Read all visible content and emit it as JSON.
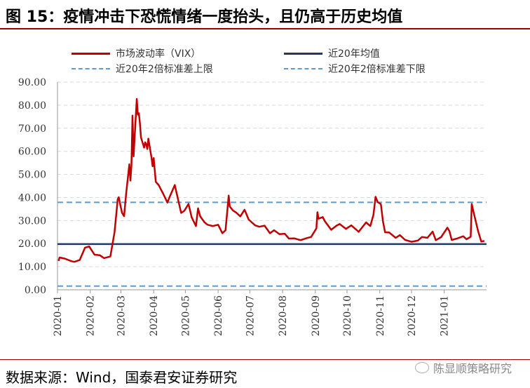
{
  "title": "图 15：疫情冲击下恐慌情绪一度抬头，且仍高于历史均值",
  "source": "数据来源：Wind，国泰君安证券研究",
  "watermark": "陈显顺策略研究",
  "colors": {
    "vix": "#c00000",
    "mean": "#1f3864",
    "band": "#5b9bd5",
    "grid": "#d9d9d9",
    "title_rule": "#9a0000"
  },
  "chart_data": {
    "type": "line",
    "title": "",
    "xlabel": "",
    "ylabel": "",
    "ylim": [
      0,
      90
    ],
    "yticks": [
      "0.00",
      "10.00",
      "20.00",
      "30.00",
      "40.00",
      "50.00",
      "60.00",
      "70.00",
      "80.00",
      "90.00"
    ],
    "xticks": [
      "2020-01",
      "2020-02",
      "2020-03",
      "2020-04",
      "2020-05",
      "2020-06",
      "2020-07",
      "2020-08",
      "2020-09",
      "2020-10",
      "2020-11",
      "2020-12",
      "2021-01"
    ],
    "grid": true,
    "legend": [
      {
        "name": "市场波动率（VIX）",
        "style": "solid",
        "color": "#c00000"
      },
      {
        "name": "近20年均值",
        "style": "solid",
        "color": "#1f3864"
      },
      {
        "name": "近20年2倍标准差上限",
        "style": "dashed",
        "color": "#5b9bd5"
      },
      {
        "name": "近20年2倍标准差下限",
        "style": "dashed",
        "color": "#5b9bd5"
      }
    ],
    "series": [
      {
        "name": "市场波动率（VIX）",
        "x": [
          "2020-01-02",
          "2020-01-03",
          "2020-01-08",
          "2020-01-14",
          "2020-01-17",
          "2020-01-22",
          "2020-01-27",
          "2020-01-31",
          "2020-02-05",
          "2020-02-10",
          "2020-02-14",
          "2020-02-20",
          "2020-02-24",
          "2020-02-27",
          "2020-02-28",
          "2020-03-02",
          "2020-03-04",
          "2020-03-06",
          "2020-03-09",
          "2020-03-10",
          "2020-03-11",
          "2020-03-12",
          "2020-03-13",
          "2020-03-16",
          "2020-03-17",
          "2020-03-18",
          "2020-03-19",
          "2020-03-20",
          "2020-03-23",
          "2020-03-24",
          "2020-03-25",
          "2020-03-26",
          "2020-03-27",
          "2020-03-30",
          "2020-03-31",
          "2020-04-01",
          "2020-04-03",
          "2020-04-06",
          "2020-04-08",
          "2020-04-10",
          "2020-04-14",
          "2020-04-16",
          "2020-04-21",
          "2020-04-23",
          "2020-04-27",
          "2020-04-30",
          "2020-05-04",
          "2020-05-07",
          "2020-05-11",
          "2020-05-13",
          "2020-05-15",
          "2020-05-19",
          "2020-05-22",
          "2020-05-27",
          "2020-06-01",
          "2020-06-05",
          "2020-06-08",
          "2020-06-11",
          "2020-06-12",
          "2020-06-15",
          "2020-06-18",
          "2020-06-22",
          "2020-06-26",
          "2020-06-30",
          "2020-07-06",
          "2020-07-10",
          "2020-07-15",
          "2020-07-20",
          "2020-07-24",
          "2020-07-29",
          "2020-08-03",
          "2020-08-07",
          "2020-08-12",
          "2020-08-18",
          "2020-08-24",
          "2020-08-28",
          "2020-09-02",
          "2020-09-03",
          "2020-09-04",
          "2020-09-08",
          "2020-09-10",
          "2020-09-16",
          "2020-09-21",
          "2020-09-24",
          "2020-09-30",
          "2020-10-05",
          "2020-10-12",
          "2020-10-19",
          "2020-10-23",
          "2020-10-26",
          "2020-10-28",
          "2020-10-30",
          "2020-11-02",
          "2020-11-04",
          "2020-11-06",
          "2020-11-10",
          "2020-11-16",
          "2020-11-20",
          "2020-11-25",
          "2020-12-01",
          "2020-12-07",
          "2020-12-11",
          "2020-12-16",
          "2020-12-21",
          "2020-12-24",
          "2020-12-29",
          "2021-01-04",
          "2021-01-06",
          "2021-01-08",
          "2021-01-13",
          "2021-01-19",
          "2021-01-22",
          "2021-01-26",
          "2021-01-27",
          "2021-01-29",
          "2021-02-02",
          "2021-02-05",
          "2021-02-08"
        ],
        "values": [
          12.5,
          14.0,
          13.5,
          12.4,
          12.1,
          12.9,
          18.2,
          18.8,
          15.2,
          15.0,
          13.7,
          14.4,
          25.0,
          39.2,
          40.1,
          33.4,
          31.9,
          41.9,
          54.4,
          47.3,
          53.9,
          75.5,
          57.8,
          82.7,
          75.9,
          76.5,
          72.0,
          66.0,
          61.6,
          63.9,
          63.0,
          61.0,
          65.5,
          57.1,
          53.5,
          57.1,
          46.8,
          45.2,
          43.4,
          41.7,
          37.8,
          40.1,
          45.4,
          41.4,
          33.3,
          34.2,
          37.2,
          31.4,
          27.6,
          35.3,
          31.9,
          29.3,
          28.2,
          27.6,
          28.2,
          24.5,
          25.8,
          40.8,
          36.1,
          34.4,
          33.5,
          31.8,
          34.7,
          30.4,
          27.9,
          27.3,
          27.8,
          24.5,
          25.8,
          24.1,
          24.3,
          22.2,
          22.3,
          21.5,
          22.4,
          22.9,
          26.6,
          33.6,
          30.8,
          31.5,
          29.7,
          26.0,
          27.8,
          28.5,
          26.4,
          27.9,
          25.1,
          29.2,
          27.6,
          32.5,
          40.3,
          38.0,
          37.1,
          29.6,
          24.9,
          24.8,
          22.5,
          23.7,
          21.6,
          20.8,
          21.3,
          22.9,
          22.5,
          25.2,
          21.5,
          22.8,
          26.9,
          25.3,
          21.6,
          22.2,
          23.2,
          21.9,
          23.0,
          37.2,
          33.1,
          25.5,
          20.9,
          21.2
        ]
      },
      {
        "name": "近20年均值",
        "values": [
          19.8
        ]
      },
      {
        "name": "近20年2倍标准差上限",
        "values": [
          37.9
        ]
      },
      {
        "name": "近20年2倍标准差下限",
        "values": [
          1.6
        ]
      }
    ]
  }
}
